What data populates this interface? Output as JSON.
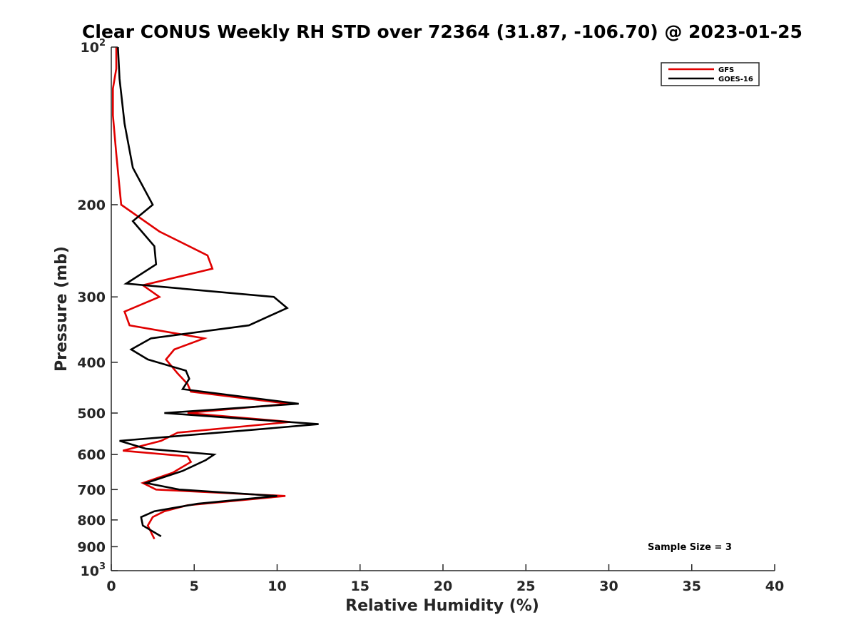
{
  "chart_data": {
    "type": "line",
    "title": "Clear CONUS Weekly RH STD over 72364 (31.87, -106.70) @ 2023-01-25",
    "xlabel": "Relative Humidity (%)",
    "ylabel": "Pressure (mb)",
    "xlim": [
      0,
      40
    ],
    "ylim": [
      100,
      1000
    ],
    "yscale": "log",
    "yreversed": true,
    "x_ticks": [
      "0",
      "5",
      "10",
      "15",
      "20",
      "25",
      "30",
      "35",
      "40"
    ],
    "y_ticks": [
      {
        "base": "10",
        "exp": "2"
      },
      {
        "base": "200",
        "exp": ""
      },
      {
        "base": "300",
        "exp": ""
      },
      {
        "base": "400",
        "exp": ""
      },
      {
        "base": "500",
        "exp": ""
      },
      {
        "base": "600",
        "exp": ""
      },
      {
        "base": "700",
        "exp": ""
      },
      {
        "base": "800",
        "exp": ""
      },
      {
        "base": "900",
        "exp": ""
      },
      {
        "base": "10",
        "exp": "3"
      }
    ],
    "legend_position": "top-right",
    "annotation": "Sample Size = 3",
    "series": [
      {
        "name": "GFS",
        "color": "#e00000",
        "points": [
          [
            0.3,
            100
          ],
          [
            0.3,
            110
          ],
          [
            0.1,
            120
          ],
          [
            0.1,
            135
          ],
          [
            0.3,
            160
          ],
          [
            0.6,
            200
          ],
          [
            2.9,
            225
          ],
          [
            5.8,
            250
          ],
          [
            6.1,
            265
          ],
          [
            1.9,
            285
          ],
          [
            2.9,
            300
          ],
          [
            0.8,
            320
          ],
          [
            1.1,
            340
          ],
          [
            5.6,
            360
          ],
          [
            3.8,
            378
          ],
          [
            3.3,
            395
          ],
          [
            4.0,
            420
          ],
          [
            4.6,
            440
          ],
          [
            4.8,
            455
          ],
          [
            10.7,
            480
          ],
          [
            4.6,
            500
          ],
          [
            10.8,
            520
          ],
          [
            4.0,
            545
          ],
          [
            3.0,
            565
          ],
          [
            0.7,
            590
          ],
          [
            4.6,
            605
          ],
          [
            4.8,
            620
          ],
          [
            3.7,
            650
          ],
          [
            1.9,
            680
          ],
          [
            2.7,
            700
          ],
          [
            10.5,
            720
          ],
          [
            4.6,
            750
          ],
          [
            3.2,
            770
          ],
          [
            2.5,
            790
          ],
          [
            2.2,
            820
          ],
          [
            2.6,
            870
          ]
        ]
      },
      {
        "name": "GOES-16",
        "color": "#000000",
        "points": [
          [
            0.4,
            100
          ],
          [
            0.5,
            115
          ],
          [
            0.8,
            140
          ],
          [
            1.3,
            170
          ],
          [
            2.5,
            200
          ],
          [
            1.3,
            215
          ],
          [
            2.6,
            240
          ],
          [
            2.7,
            260
          ],
          [
            0.9,
            283
          ],
          [
            9.8,
            300
          ],
          [
            10.6,
            315
          ],
          [
            8.3,
            340
          ],
          [
            2.4,
            360
          ],
          [
            1.2,
            378
          ],
          [
            2.2,
            395
          ],
          [
            4.5,
            415
          ],
          [
            4.7,
            430
          ],
          [
            4.3,
            450
          ],
          [
            11.3,
            480
          ],
          [
            3.2,
            500
          ],
          [
            12.5,
            525
          ],
          [
            8.0,
            540
          ],
          [
            0.5,
            565
          ],
          [
            2.1,
            585
          ],
          [
            6.2,
            600
          ],
          [
            5.7,
            615
          ],
          [
            4.3,
            645
          ],
          [
            2.1,
            680
          ],
          [
            4.1,
            700
          ],
          [
            10.0,
            720
          ],
          [
            5.2,
            745
          ],
          [
            2.6,
            770
          ],
          [
            1.8,
            790
          ],
          [
            1.9,
            820
          ],
          [
            3.0,
            860
          ]
        ]
      }
    ]
  }
}
